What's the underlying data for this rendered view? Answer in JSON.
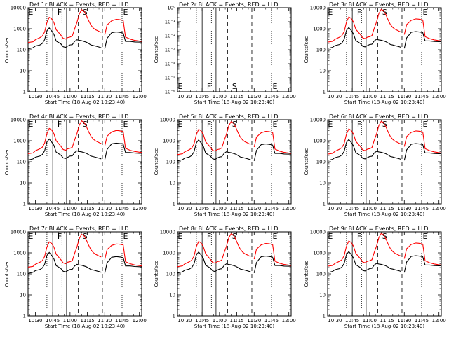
{
  "chart_data": {
    "type": "line",
    "shared": {
      "xlabel": "Start Time (18-Aug-02 10:23:40)",
      "ylabel": "Counts/sec",
      "x_tick_labels": [
        "10:30",
        "10:45",
        "11:00",
        "11:15",
        "11:30",
        "11:45",
        "12:00"
      ],
      "x_tick_minutes": [
        30,
        45,
        60,
        75,
        90,
        105,
        120
      ],
      "xlim_minutes": [
        23.67,
        122
      ],
      "y_scale": "log",
      "ylim": [
        1,
        10000
      ],
      "y_tick_labels": [
        "1",
        "10",
        "100",
        "1000",
        "10000"
      ],
      "grid": false,
      "series_colors": {
        "Events": "#000000",
        "LLD": "#ff0000"
      },
      "event_markers": {
        "letters": [
          "E",
          "F",
          "S",
          "E"
        ],
        "letter_x_minutes": [
          26,
          51,
          73,
          108
        ],
        "dotted_x_minutes": [
          40,
          53,
          105
        ],
        "solid_x_minutes": [
          45,
          57
        ],
        "dashed_x_minutes": [
          67,
          88
        ]
      }
    },
    "panels": [
      {
        "title": "Det 1r  BLACK = Events, RED = LLD",
        "has_data": true,
        "peak_scale": 1.0
      },
      {
        "title": "Det 2r  BLACK = Events, RED = LLD",
        "has_data": false,
        "ylim": [
          1e-06,
          1
        ],
        "y_tick_labels": [
          "10⁻⁶",
          "10⁻⁵",
          "10⁻⁴",
          "10⁻³",
          "10⁻²",
          "10⁻¹",
          "10⁰"
        ]
      },
      {
        "title": "Det 3r  BLACK = Events, RED = LLD",
        "has_data": true,
        "peak_scale": 1.05
      },
      {
        "title": "Det 4r  BLACK = Events, RED = LLD",
        "has_data": true,
        "peak_scale": 1.1
      },
      {
        "title": "Det 5r  BLACK = Events, RED = LLD",
        "has_data": true,
        "peak_scale": 1.0
      },
      {
        "title": "Det 6r  BLACK = Events, RED = LLD",
        "has_data": true,
        "peak_scale": 1.05
      },
      {
        "title": "Det 7r  BLACK = Events, RED = LLD",
        "has_data": true,
        "peak_scale": 0.95
      },
      {
        "title": "Det 8r  BLACK = Events, RED = LLD",
        "has_data": true,
        "peak_scale": 1.0
      },
      {
        "title": "Det 9r  BLACK = Events, RED = LLD",
        "has_data": true,
        "peak_scale": 1.05
      }
    ],
    "series": [
      {
        "name": "Events",
        "x": [
          23.67,
          28,
          30,
          34,
          36,
          38,
          40,
          42,
          44,
          46,
          48,
          52,
          54,
          56,
          58,
          60,
          62,
          64,
          66,
          68,
          70,
          72,
          74,
          76,
          78,
          80,
          82,
          84,
          86,
          87,
          88,
          90,
          92,
          96,
          100,
          102,
          104,
          106,
          108,
          112,
          116,
          120,
          122
        ],
        "y": [
          110,
          125,
          150,
          170,
          200,
          300,
          800,
          1100,
          800,
          550,
          260,
          190,
          140,
          130,
          150,
          170,
          175,
          250,
          300,
          280,
          270,
          250,
          230,
          200,
          170,
          160,
          150,
          140,
          130,
          125,
          null,
          110,
          350,
          650,
          700,
          680,
          660,
          620,
          250,
          250,
          235,
          230,
          230
        ]
      },
      {
        "name": "LLD",
        "x": [
          23.67,
          28,
          30,
          34,
          36,
          38,
          40,
          42,
          44,
          46,
          48,
          52,
          54,
          56,
          58,
          60,
          62,
          64,
          66,
          68,
          70,
          72,
          74,
          76,
          78,
          80,
          82,
          84,
          86,
          87,
          88,
          90,
          92,
          96,
          100,
          102,
          104,
          106,
          108,
          112,
          116,
          120,
          122
        ],
        "y": [
          220,
          240,
          300,
          380,
          450,
          700,
          2000,
          3500,
          3000,
          2000,
          900,
          500,
          350,
          320,
          380,
          400,
          450,
          1000,
          2000,
          5000,
          8000,
          7000,
          4500,
          2500,
          1500,
          1100,
          900,
          800,
          700,
          680,
          null,
          500,
          1500,
          2400,
          2800,
          2750,
          2650,
          2500,
          400,
          320,
          280,
          260,
          250
        ]
      }
    ]
  }
}
